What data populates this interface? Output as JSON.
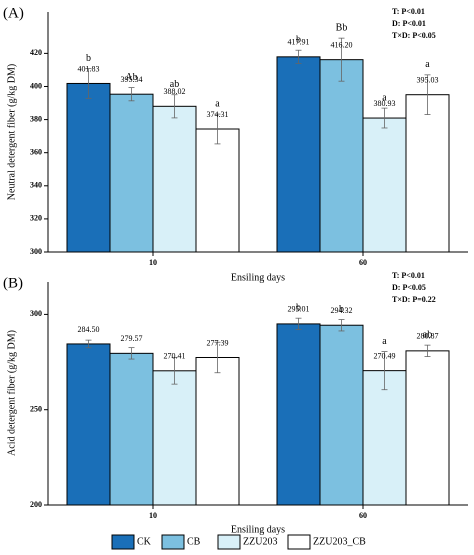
{
  "chart_data": [
    {
      "type": "bar",
      "panel_label": "(A)",
      "y_label": "Neutral detergent fiber (g/kg DM)",
      "x_label": "Ensiling days",
      "categories": [
        "10",
        "60"
      ],
      "stats": [
        "T: P<0.01",
        "D: P<0.01",
        "T×D: P<0.05"
      ],
      "ylim": [
        300,
        445
      ],
      "yticks": [
        300,
        320,
        340,
        360,
        380,
        400,
        420
      ],
      "series": [
        {
          "name": "CK",
          "color": "#1a6fb8",
          "values": [
            401.83,
            417.91
          ],
          "errors": [
            9,
            4
          ],
          "letters": [
            "b",
            "b"
          ]
        },
        {
          "name": "CB",
          "color": "#7cc0e0",
          "values": [
            395.34,
            416.2
          ],
          "value_labels": [
            "395.34",
            "416.20"
          ],
          "errors": [
            4,
            13
          ],
          "letters": [
            "Ab",
            "Bb"
          ]
        },
        {
          "name": "ZZU203",
          "color": "#d8f0f8",
          "values": [
            388.02,
            380.93
          ],
          "errors": [
            7,
            6
          ],
          "letters": [
            "ab",
            "a"
          ]
        },
        {
          "name": "ZZU203_CB",
          "color": "#ffffff",
          "values": [
            374.31,
            395.03
          ],
          "errors": [
            9,
            12
          ],
          "letters": [
            "a",
            "a"
          ]
        }
      ]
    },
    {
      "type": "bar",
      "panel_label": "(B)",
      "y_label": "Acid detergent fiber (g/kg DM)",
      "x_label": "Ensiling days",
      "categories": [
        "10",
        "60"
      ],
      "stats": [
        "T: P<0.01",
        "D: P<0.05",
        "T×D: P=0.22"
      ],
      "ylim": [
        200,
        317
      ],
      "yticks": [
        200,
        250,
        300
      ],
      "series": [
        {
          "color": "#1a6fb8",
          "values": [
            284.5,
            295.01
          ],
          "value_labels": [
            "284.50",
            "295.01"
          ],
          "errors": [
            2,
            3
          ],
          "letters": [
            null,
            "b"
          ]
        },
        {
          "color": "#7cc0e0",
          "values": [
            279.57,
            294.32
          ],
          "errors": [
            3,
            3
          ],
          "letters": [
            null,
            "b"
          ]
        },
        {
          "color": "#d8f0f8",
          "values": [
            270.41,
            270.49
          ],
          "errors": [
            7,
            10
          ],
          "letters": [
            null,
            "a"
          ]
        },
        {
          "color": "#ffffff",
          "values": [
            277.39,
            280.87
          ],
          "errors": [
            8,
            3
          ],
          "letters": [
            null,
            "ab"
          ]
        }
      ]
    }
  ]
}
